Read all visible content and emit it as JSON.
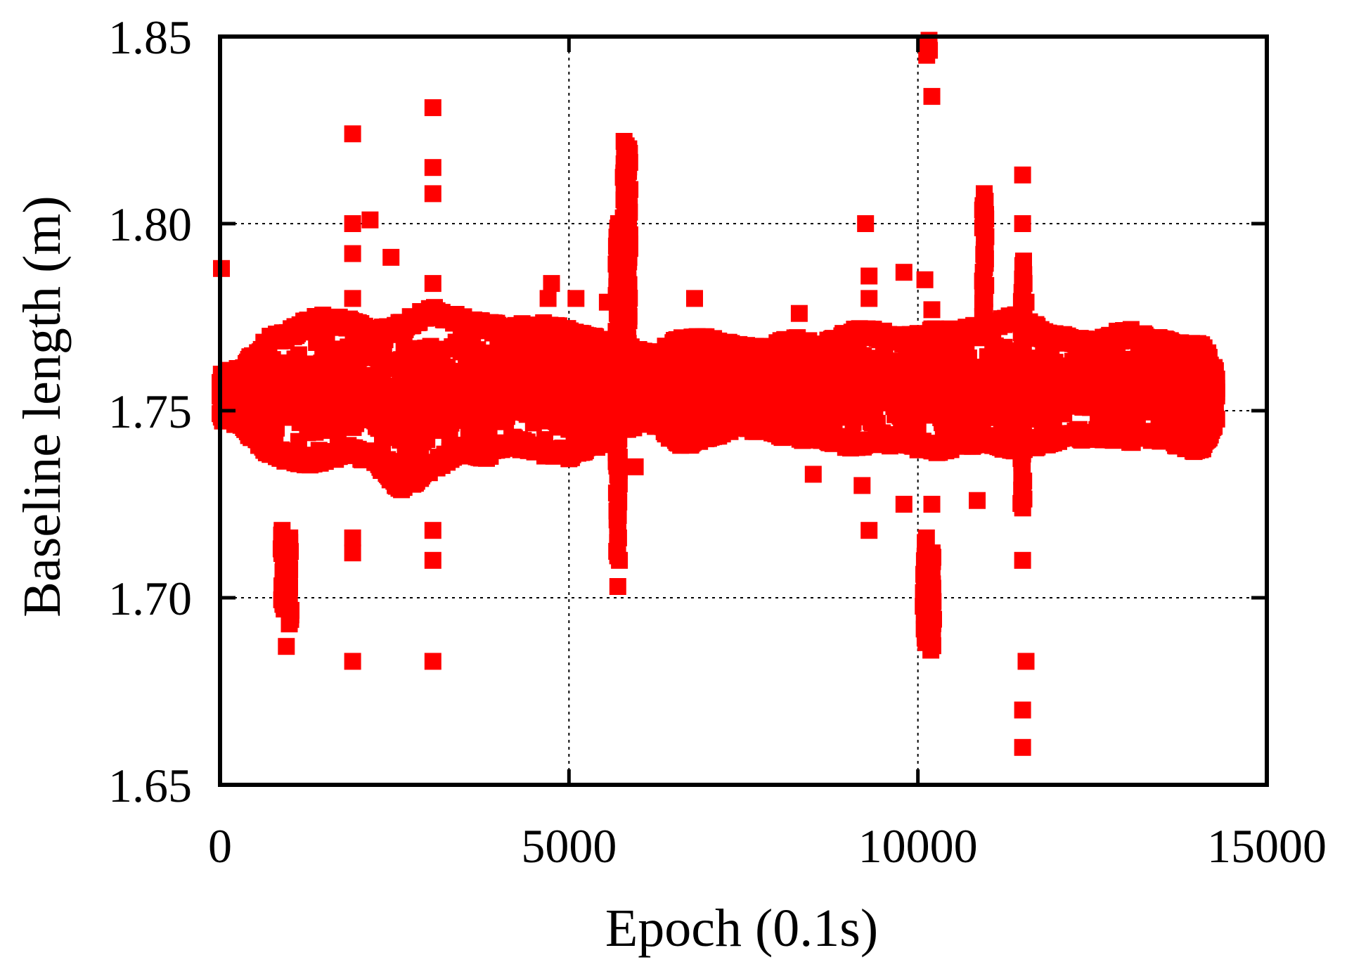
{
  "chart_data": {
    "type": "scatter",
    "xlabel": "Epoch (0.1s)",
    "ylabel": "Baseline length (m)",
    "xlim": [
      0,
      15000
    ],
    "ylim": [
      1.65,
      1.85
    ],
    "x_ticks": [
      0,
      5000,
      10000,
      15000
    ],
    "x_tick_labels": [
      "0",
      "5000",
      "10000",
      "15000"
    ],
    "y_ticks": [
      1.65,
      1.7,
      1.75,
      1.8,
      1.85
    ],
    "y_tick_labels": [
      "1.65",
      "1.70",
      "1.75",
      "1.80",
      "1.85"
    ],
    "grid": true,
    "marker": "square",
    "color": "#ff0000",
    "series": [
      {
        "band": [
          [
            0,
            1.747,
            1.76
          ],
          [
            300,
            1.745,
            1.762
          ],
          [
            700,
            1.738,
            1.77
          ],
          [
            1000,
            1.736,
            1.772
          ],
          [
            1400,
            1.735,
            1.776
          ],
          [
            1800,
            1.738,
            1.775
          ],
          [
            2200,
            1.736,
            1.772
          ],
          [
            2600,
            1.728,
            1.774
          ],
          [
            3000,
            1.733,
            1.778
          ],
          [
            3400,
            1.738,
            1.776
          ],
          [
            3800,
            1.737,
            1.774
          ],
          [
            4200,
            1.74,
            1.773
          ],
          [
            4600,
            1.738,
            1.774
          ],
          [
            5000,
            1.737,
            1.772
          ],
          [
            5400,
            1.74,
            1.77
          ],
          [
            5800,
            1.745,
            1.768
          ],
          [
            6200,
            1.746,
            1.765
          ],
          [
            6600,
            1.74,
            1.77
          ],
          [
            7000,
            1.742,
            1.77
          ],
          [
            7400,
            1.745,
            1.768
          ],
          [
            7800,
            1.744,
            1.767
          ],
          [
            8200,
            1.742,
            1.77
          ],
          [
            8600,
            1.742,
            1.768
          ],
          [
            9000,
            1.74,
            1.772
          ],
          [
            9400,
            1.74,
            1.772
          ],
          [
            9800,
            1.741,
            1.77
          ],
          [
            10200,
            1.738,
            1.772
          ],
          [
            10600,
            1.74,
            1.772
          ],
          [
            11000,
            1.741,
            1.774
          ],
          [
            11400,
            1.738,
            1.776
          ],
          [
            11800,
            1.74,
            1.772
          ],
          [
            12200,
            1.742,
            1.77
          ],
          [
            12600,
            1.742,
            1.77
          ],
          [
            13000,
            1.741,
            1.772
          ],
          [
            13400,
            1.742,
            1.77
          ],
          [
            13800,
            1.74,
            1.768
          ],
          [
            14100,
            1.738,
            1.768
          ],
          [
            14300,
            1.748,
            1.76
          ]
        ],
        "spikes": [
          [
            900,
            1.697,
            1.718
          ],
          [
            1000,
            1.693,
            1.716
          ],
          [
            5700,
            1.71,
            1.8
          ],
          [
            5800,
            1.745,
            1.822
          ],
          [
            5850,
            1.745,
            1.82
          ],
          [
            10100,
            1.688,
            1.716
          ],
          [
            10200,
            1.686,
            1.712
          ],
          [
            10150,
            1.845,
            1.849
          ],
          [
            10950,
            1.774,
            1.806
          ],
          [
            11500,
            1.724,
            1.79
          ]
        ],
        "points": [
          [
            20,
            1.788
          ],
          [
            950,
            1.687
          ],
          [
            1900,
            1.824
          ],
          [
            1900,
            1.8
          ],
          [
            1900,
            1.792
          ],
          [
            1900,
            1.78
          ],
          [
            1900,
            1.716
          ],
          [
            1900,
            1.712
          ],
          [
            1900,
            1.683
          ],
          [
            2150,
            1.801
          ],
          [
            2450,
            1.791
          ],
          [
            3050,
            1.831
          ],
          [
            3050,
            1.815
          ],
          [
            3050,
            1.808
          ],
          [
            3050,
            1.784
          ],
          [
            3050,
            1.718
          ],
          [
            3050,
            1.71
          ],
          [
            3050,
            1.683
          ],
          [
            4700,
            1.78
          ],
          [
            4750,
            1.784
          ],
          [
            5100,
            1.78
          ],
          [
            5550,
            1.779
          ],
          [
            5700,
            1.703
          ],
          [
            5950,
            1.735
          ],
          [
            6800,
            1.78
          ],
          [
            8300,
            1.776
          ],
          [
            8500,
            1.733
          ],
          [
            9200,
            1.73
          ],
          [
            9250,
            1.8
          ],
          [
            9300,
            1.718
          ],
          [
            9300,
            1.786
          ],
          [
            9300,
            1.78
          ],
          [
            9800,
            1.725
          ],
          [
            9800,
            1.787
          ],
          [
            10100,
            1.785
          ],
          [
            10200,
            1.834
          ],
          [
            10200,
            1.777
          ],
          [
            10200,
            1.725
          ],
          [
            10850,
            1.726
          ],
          [
            10950,
            1.808
          ],
          [
            11500,
            1.813
          ],
          [
            11500,
            1.8
          ],
          [
            11500,
            1.783
          ],
          [
            11550,
            1.779
          ],
          [
            11500,
            1.71
          ],
          [
            11550,
            1.683
          ],
          [
            11500,
            1.67
          ],
          [
            11500,
            1.66
          ]
        ]
      }
    ]
  }
}
